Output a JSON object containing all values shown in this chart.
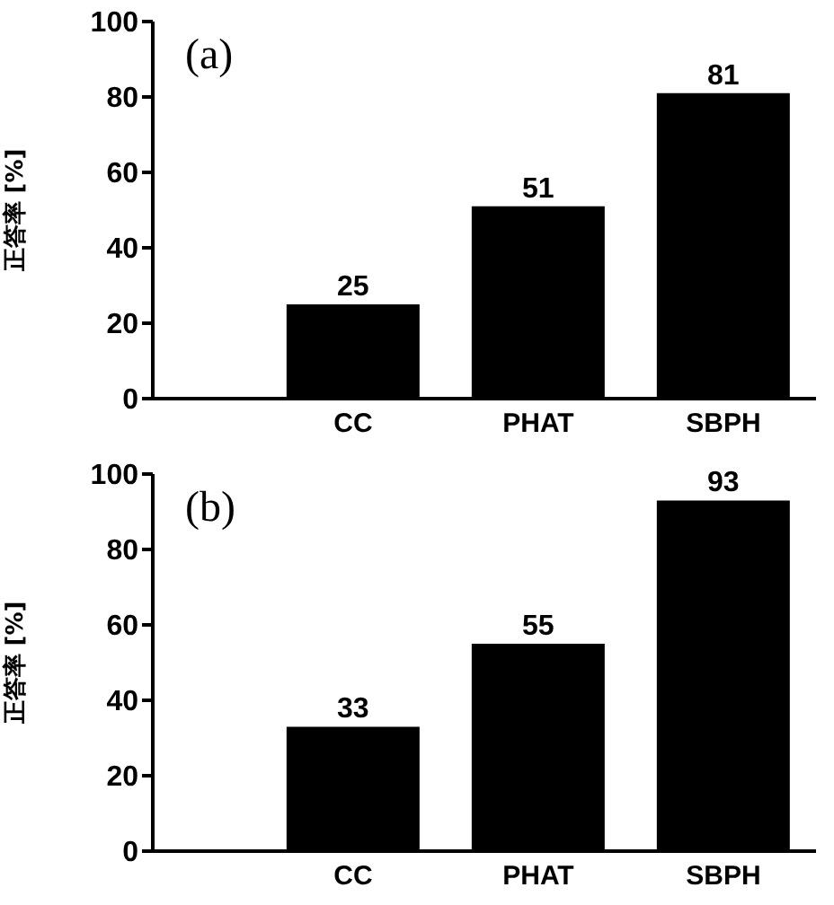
{
  "chart_data": [
    {
      "type": "bar",
      "title": "(a)",
      "categories": [
        "CC",
        "PHAT",
        "SBPH"
      ],
      "values": [
        25,
        51,
        81
      ],
      "color": "#000000",
      "ylabel": "正答率 [%]",
      "ylim": [
        0,
        100
      ],
      "yticks": [
        0,
        20,
        40,
        60,
        80,
        100
      ],
      "data_labels": true,
      "grid": false,
      "legend": false
    },
    {
      "type": "bar",
      "title": "(b)",
      "categories": [
        "CC",
        "PHAT",
        "SBPH"
      ],
      "values": [
        33,
        55,
        93
      ],
      "color": "#000000",
      "ylabel": "正答率 [%]",
      "ylim": [
        0,
        100
      ],
      "yticks": [
        0,
        20,
        40,
        60,
        80,
        100
      ],
      "data_labels": true,
      "grid": false,
      "legend": false
    }
  ]
}
